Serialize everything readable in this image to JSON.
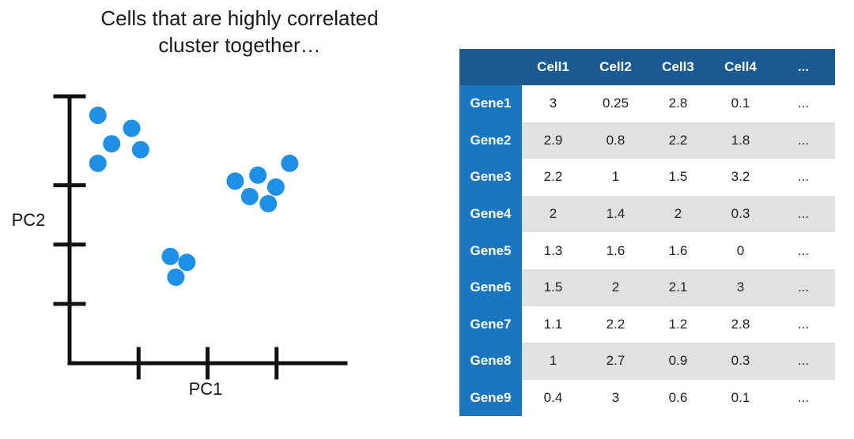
{
  "headline": {
    "line1": "Cells that are highly correlated",
    "line2": "cluster together…"
  },
  "chart_data": [
    {
      "type": "scatter",
      "title": "",
      "xlabel": "PC1",
      "ylabel": "PC2",
      "xlim": [
        0,
        4
      ],
      "ylim": [
        0,
        4.5
      ],
      "x_ticks": [
        1,
        2,
        3
      ],
      "y_ticks": [
        1,
        2,
        3
      ],
      "grid": false,
      "point_color": "#1e90e8",
      "axis_color": "#111111",
      "points": [
        {
          "x": 0.41,
          "y": 4.18
        },
        {
          "x": 0.9,
          "y": 3.96
        },
        {
          "x": 0.61,
          "y": 3.7
        },
        {
          "x": 1.03,
          "y": 3.6
        },
        {
          "x": 0.41,
          "y": 3.37
        },
        {
          "x": 3.19,
          "y": 3.37
        },
        {
          "x": 2.73,
          "y": 3.17
        },
        {
          "x": 2.4,
          "y": 3.07
        },
        {
          "x": 2.99,
          "y": 2.97
        },
        {
          "x": 2.61,
          "y": 2.81
        },
        {
          "x": 2.88,
          "y": 2.69
        },
        {
          "x": 1.46,
          "y": 1.8
        },
        {
          "x": 1.7,
          "y": 1.7
        },
        {
          "x": 1.54,
          "y": 1.45
        }
      ]
    },
    {
      "type": "table",
      "corner": "",
      "columns": [
        "Cell1",
        "Cell2",
        "Cell3",
        "Cell4",
        "..."
      ],
      "rows": [
        {
          "label": "Gene1",
          "values": [
            "3",
            "0.25",
            "2.8",
            "0.1",
            "..."
          ]
        },
        {
          "label": "Gene2",
          "values": [
            "2.9",
            "0.8",
            "2.2",
            "1.8",
            "..."
          ]
        },
        {
          "label": "Gene3",
          "values": [
            "2.2",
            "1",
            "1.5",
            "3.2",
            "..."
          ]
        },
        {
          "label": "Gene4",
          "values": [
            "2",
            "1.4",
            "2",
            "0.3",
            "..."
          ]
        },
        {
          "label": "Gene5",
          "values": [
            "1.3",
            "1.6",
            "1.6",
            "0",
            "..."
          ]
        },
        {
          "label": "Gene6",
          "values": [
            "1.5",
            "2",
            "2.1",
            "3",
            "..."
          ]
        },
        {
          "label": "Gene7",
          "values": [
            "1.1",
            "2.2",
            "1.2",
            "2.8",
            "..."
          ]
        },
        {
          "label": "Gene8",
          "values": [
            "1",
            "2.7",
            "0.9",
            "0.3",
            "..."
          ]
        },
        {
          "label": "Gene9",
          "values": [
            "0.4",
            "3",
            "0.6",
            "0.1",
            "..."
          ]
        }
      ],
      "header_color": "#1a5a91",
      "row_header_color": "#1a77bf",
      "stripe_color": "#e1e1e3"
    }
  ]
}
